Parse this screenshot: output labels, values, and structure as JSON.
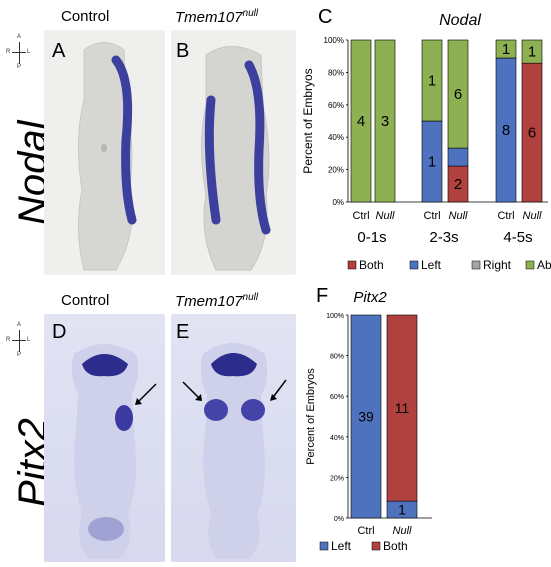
{
  "top": {
    "col1_header": "Control",
    "col2_header_base": "Tmem107",
    "col2_header_sup": "null",
    "row_label": "Nodal",
    "panel_a": "A",
    "panel_b": "B",
    "panel_c": "C",
    "axes": {
      "a": "A",
      "p": "P",
      "r": "R",
      "l": "L"
    }
  },
  "bottom": {
    "col1_header": "Control",
    "col2_header_base": "Tmem107",
    "col2_header_sup": "null",
    "row_label": "Pitx2",
    "panel_d": "D",
    "panel_e": "E",
    "panel_f": "F",
    "axes": {
      "a": "A",
      "p": "P",
      "r": "R",
      "l": "L"
    }
  },
  "colors": {
    "both": "#b0413e",
    "left": "#4f72be",
    "right": "#a5a5a5",
    "absent": "#8db152"
  },
  "chart_data": [
    {
      "type": "bar",
      "stacked": true,
      "title": "Nodal",
      "ylabel": "Percent of Embryos",
      "ylim": [
        0,
        100
      ],
      "yticks": [
        "0%",
        "20%",
        "40%",
        "60%",
        "80%",
        "100%"
      ],
      "groups": [
        {
          "label": "0-1s",
          "bars": [
            {
              "label": "Ctrl",
              "segments": [
                {
                  "key": "absent",
                  "pct": 100,
                  "count": "4"
                }
              ]
            },
            {
              "label": "Null",
              "segments": [
                {
                  "key": "absent",
                  "pct": 100,
                  "count": "3"
                }
              ]
            }
          ]
        },
        {
          "label": "2-3s",
          "bars": [
            {
              "label": "Ctrl",
              "segments": [
                {
                  "key": "left",
                  "pct": 50,
                  "count": "1"
                },
                {
                  "key": "absent",
                  "pct": 50,
                  "count": "1"
                }
              ]
            },
            {
              "label": "Null",
              "segments": [
                {
                  "key": "both",
                  "pct": 22.2,
                  "count": "2"
                },
                {
                  "key": "left",
                  "pct": 11.1,
                  "count": ""
                },
                {
                  "key": "absent",
                  "pct": 66.7,
                  "count": "6"
                }
              ]
            }
          ]
        },
        {
          "label": "4-5s",
          "bars": [
            {
              "label": "Ctrl",
              "segments": [
                {
                  "key": "left",
                  "pct": 88.9,
                  "count": "8"
                },
                {
                  "key": "absent",
                  "pct": 11.1,
                  "count": "1"
                }
              ]
            },
            {
              "label": "Null",
              "segments": [
                {
                  "key": "both",
                  "pct": 85.7,
                  "count": "6"
                },
                {
                  "key": "absent",
                  "pct": 14.3,
                  "count": "1"
                }
              ]
            }
          ]
        }
      ],
      "legend": [
        {
          "key": "both",
          "label": "Both"
        },
        {
          "key": "left",
          "label": "Left"
        },
        {
          "key": "right",
          "label": "Right"
        },
        {
          "key": "absent",
          "label": "Absent"
        }
      ]
    },
    {
      "type": "bar",
      "stacked": true,
      "title": "Pitx2",
      "ylabel": "Percent of Embryos",
      "ylim": [
        0,
        100
      ],
      "yticks": [
        "0%",
        "20%",
        "40%",
        "60%",
        "80%",
        "100%"
      ],
      "bars": [
        {
          "label": "Ctrl",
          "segments": [
            {
              "key": "left",
              "pct": 100,
              "count": "39"
            }
          ]
        },
        {
          "label": "Null",
          "segments": [
            {
              "key": "left",
              "pct": 8.3,
              "count": "1"
            },
            {
              "key": "both",
              "pct": 91.7,
              "count": "11"
            }
          ]
        }
      ],
      "legend": [
        {
          "key": "left",
          "label": "Left"
        },
        {
          "key": "both",
          "label": "Both"
        }
      ]
    }
  ]
}
